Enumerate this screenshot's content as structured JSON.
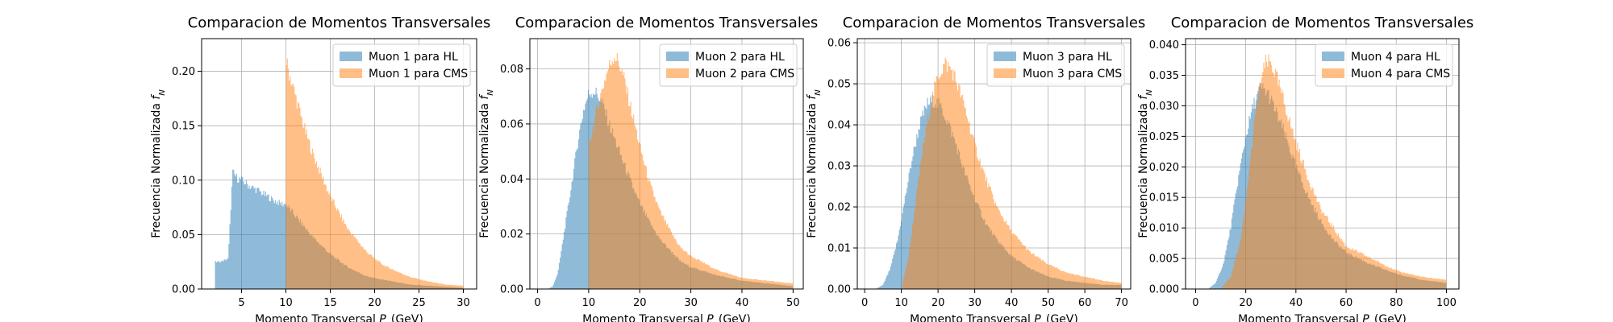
{
  "figure": {
    "background": "#ffffff"
  },
  "colors": {
    "hl": "#1f77b4",
    "cms": "#ff7f0e",
    "grid": "#b0b0b0"
  },
  "chart_data": [
    {
      "type": "histogram",
      "title": "Comparacion de Momentos Transversales",
      "xlabel": "Momento Transversal $P_T$(GeV)",
      "ylabel": "Frecuencia Normalizada $f_N$",
      "xlim": [
        0.5,
        31.5
      ],
      "ylim": [
        0,
        0.23
      ],
      "xticks": [
        5,
        10,
        15,
        20,
        25,
        30
      ],
      "yticks": [
        0.0,
        0.05,
        0.1,
        0.15,
        0.2
      ],
      "ytick_labels": [
        "0.00",
        "0.05",
        "0.10",
        "0.15",
        "0.20"
      ],
      "grid": true,
      "legend_position": "top-right",
      "series": [
        {
          "name": "Muon 1 para HL",
          "color": "#1f77b4",
          "opacity": 0.5,
          "x": [
            2,
            2.5,
            3,
            3.5,
            4,
            4.5,
            5,
            5.5,
            6,
            6.5,
            7,
            7.5,
            8,
            8.5,
            9,
            9.5,
            10,
            11,
            12,
            13,
            14,
            15,
            16,
            17,
            18,
            19,
            20,
            22,
            24,
            26,
            28,
            30
          ],
          "y": [
            0.025,
            0.025,
            0.026,
            0.028,
            0.107,
            0.102,
            0.1,
            0.097,
            0.094,
            0.092,
            0.09,
            0.087,
            0.085,
            0.082,
            0.08,
            0.078,
            0.078,
            0.068,
            0.058,
            0.048,
            0.04,
            0.032,
            0.026,
            0.02,
            0.016,
            0.012,
            0.01,
            0.007,
            0.004,
            0.003,
            0.002,
            0.001
          ]
        },
        {
          "name": "Muon 1 para CMS",
          "color": "#ff7f0e",
          "opacity": 0.5,
          "x": [
            10,
            10.5,
            11,
            12,
            13,
            14,
            15,
            16,
            17,
            18,
            19,
            20,
            21,
            22,
            24,
            26,
            28,
            30
          ],
          "y": [
            0.21,
            0.195,
            0.18,
            0.15,
            0.125,
            0.105,
            0.085,
            0.07,
            0.055,
            0.045,
            0.035,
            0.028,
            0.022,
            0.018,
            0.011,
            0.007,
            0.004,
            0.003
          ]
        }
      ]
    },
    {
      "type": "histogram",
      "title": "Comparacion de Momentos Transversales",
      "xlabel": "Momento Transversal $P_T$(GeV)",
      "ylabel": "Frecuencia Normalizada $f_N$",
      "xlim": [
        -1.5,
        52
      ],
      "ylim": [
        0,
        0.091
      ],
      "xticks": [
        0,
        10,
        20,
        30,
        40,
        50
      ],
      "yticks": [
        0.0,
        0.02,
        0.04,
        0.06,
        0.08
      ],
      "ytick_labels": [
        "0.00",
        "0.02",
        "0.04",
        "0.06",
        "0.08"
      ],
      "grid": true,
      "legend_position": "top-right",
      "series": [
        {
          "name": "Muon 2 para HL",
          "color": "#1f77b4",
          "opacity": 0.5,
          "x": [
            0,
            2,
            3,
            4,
            5,
            6,
            7,
            8,
            9,
            10,
            11,
            12,
            13,
            14,
            16,
            18,
            20,
            22,
            24,
            26,
            28,
            30,
            35,
            40,
            45,
            50
          ],
          "y": [
            0.0,
            0.0,
            0.001,
            0.006,
            0.018,
            0.03,
            0.042,
            0.055,
            0.065,
            0.071,
            0.072,
            0.07,
            0.066,
            0.06,
            0.05,
            0.04,
            0.031,
            0.024,
            0.018,
            0.014,
            0.01,
            0.008,
            0.005,
            0.003,
            0.002,
            0.001
          ]
        },
        {
          "name": "Muon 2 para CMS",
          "color": "#ff7f0e",
          "opacity": 0.5,
          "x": [
            10,
            11,
            12,
            13,
            14,
            15,
            16,
            17,
            18,
            19,
            20,
            22,
            24,
            26,
            28,
            30,
            35,
            40,
            45,
            50
          ],
          "y": [
            0.052,
            0.06,
            0.068,
            0.075,
            0.081,
            0.085,
            0.082,
            0.076,
            0.068,
            0.06,
            0.052,
            0.038,
            0.028,
            0.021,
            0.015,
            0.012,
            0.007,
            0.004,
            0.003,
            0.002
          ]
        }
      ]
    },
    {
      "type": "histogram",
      "title": "Comparacion de Momentos Transversales",
      "xlabel": "Momento Transversal $P_T$(GeV)",
      "ylabel": "Frecuencia Normalizada $f_N$",
      "xlim": [
        -2,
        72.5
      ],
      "ylim": [
        0,
        0.061
      ],
      "xticks": [
        0,
        10,
        20,
        30,
        40,
        50,
        60,
        70
      ],
      "yticks": [
        0.0,
        0.01,
        0.02,
        0.03,
        0.04,
        0.05,
        0.06
      ],
      "ytick_labels": [
        "0.00",
        "0.01",
        "0.02",
        "0.03",
        "0.04",
        "0.05",
        "0.06"
      ],
      "grid": true,
      "legend_position": "top-right",
      "series": [
        {
          "name": "Muon 3 para HL",
          "color": "#1f77b4",
          "opacity": 0.5,
          "x": [
            3,
            5,
            7,
            9,
            11,
            13,
            15,
            17,
            19,
            21,
            23,
            25,
            27,
            30,
            33,
            36,
            40,
            45,
            50,
            55,
            60,
            65,
            70
          ],
          "y": [
            0.0,
            0.001,
            0.005,
            0.012,
            0.022,
            0.032,
            0.04,
            0.045,
            0.046,
            0.044,
            0.04,
            0.035,
            0.029,
            0.022,
            0.016,
            0.012,
            0.008,
            0.005,
            0.003,
            0.002,
            0.0015,
            0.001,
            0.001
          ]
        },
        {
          "name": "Muon 3 para CMS",
          "color": "#ff7f0e",
          "opacity": 0.5,
          "x": [
            10,
            12,
            14,
            16,
            18,
            20,
            22,
            24,
            26,
            28,
            30,
            33,
            36,
            40,
            45,
            50,
            55,
            60,
            65,
            70
          ],
          "y": [
            0.0,
            0.008,
            0.022,
            0.035,
            0.045,
            0.052,
            0.055,
            0.053,
            0.048,
            0.042,
            0.035,
            0.027,
            0.02,
            0.014,
            0.009,
            0.006,
            0.004,
            0.003,
            0.002,
            0.0015
          ]
        }
      ]
    },
    {
      "type": "histogram",
      "title": "Comparacion de Momentos Transversales",
      "xlabel": "Momento Transversal $P_T$(GeV)",
      "ylabel": "Frecuencia Normalizada $f_N$",
      "xlim": [
        -4,
        105
      ],
      "ylim": [
        0,
        0.041
      ],
      "xticks": [
        0,
        20,
        40,
        60,
        80,
        100
      ],
      "yticks": [
        0.0,
        0.005,
        0.01,
        0.015,
        0.02,
        0.025,
        0.03,
        0.035,
        0.04
      ],
      "ytick_labels": [
        "0.000",
        "0.005",
        "0.010",
        "0.015",
        "0.020",
        "0.025",
        "0.030",
        "0.035",
        "0.040"
      ],
      "grid": true,
      "legend_position": "top-right",
      "series": [
        {
          "name": "Muon 4 para HL",
          "color": "#1f77b4",
          "opacity": 0.5,
          "x": [
            5,
            8,
            11,
            14,
            17,
            20,
            23,
            26,
            29,
            32,
            35,
            40,
            45,
            50,
            55,
            60,
            70,
            80,
            90,
            100
          ],
          "y": [
            0.0,
            0.001,
            0.004,
            0.01,
            0.018,
            0.025,
            0.03,
            0.033,
            0.032,
            0.029,
            0.026,
            0.02,
            0.015,
            0.011,
            0.008,
            0.006,
            0.004,
            0.0025,
            0.0015,
            0.001
          ]
        },
        {
          "name": "Muon 4 para CMS",
          "color": "#ff7f0e",
          "opacity": 0.5,
          "x": [
            10,
            14,
            18,
            20,
            22,
            24,
            26,
            28,
            30,
            32,
            35,
            40,
            45,
            50,
            55,
            60,
            70,
            80,
            90,
            100
          ],
          "y": [
            0.0,
            0.002,
            0.008,
            0.014,
            0.022,
            0.029,
            0.034,
            0.037,
            0.037,
            0.035,
            0.031,
            0.024,
            0.018,
            0.013,
            0.01,
            0.007,
            0.005,
            0.003,
            0.002,
            0.0015
          ]
        }
      ]
    }
  ]
}
